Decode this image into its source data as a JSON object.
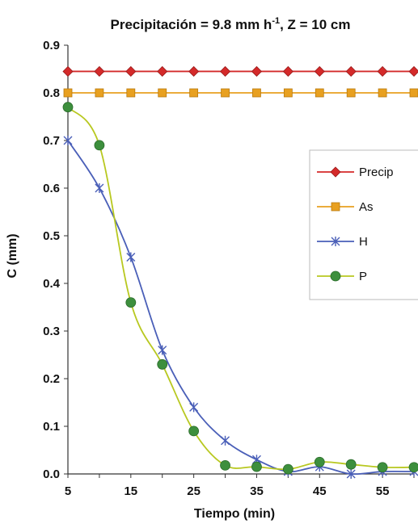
{
  "chart_data": {
    "type": "line",
    "title": "Precipitación = 9.8 mm h",
    "title_sup": "-1",
    "title_suffix": ", Z = 10 cm",
    "xlabel": "Tiempo (min)",
    "ylabel": "C (mm)",
    "xlim": [
      5,
      60
    ],
    "ylim": [
      0,
      0.9
    ],
    "x_ticks": [
      5,
      15,
      25,
      35,
      45,
      55
    ],
    "y_ticks": [
      "0.0",
      "0.1",
      "0.2",
      "0.3",
      "0.4",
      "0.5",
      "0.6",
      "0.7",
      "0.8",
      "0.9"
    ],
    "grid": false,
    "legend_position": "right",
    "series": [
      {
        "name": "Precip",
        "color": "#d42a2a",
        "marker": "diamond",
        "x": [
          5,
          10,
          15,
          20,
          25,
          30,
          35,
          40,
          45,
          50,
          55,
          60
        ],
        "values": [
          0.845,
          0.845,
          0.845,
          0.845,
          0.845,
          0.845,
          0.845,
          0.845,
          0.845,
          0.845,
          0.845,
          0.845
        ]
      },
      {
        "name": "As",
        "color": "#e8a020",
        "marker": "square",
        "x": [
          5,
          10,
          15,
          20,
          25,
          30,
          35,
          40,
          45,
          50,
          55,
          60
        ],
        "values": [
          0.8,
          0.8,
          0.8,
          0.8,
          0.8,
          0.8,
          0.8,
          0.8,
          0.8,
          0.8,
          0.8,
          0.8
        ]
      },
      {
        "name": "H",
        "color": "#4a5fb8",
        "marker": "star",
        "x": [
          5,
          10,
          15,
          20,
          25,
          30,
          35,
          40,
          45,
          50,
          55,
          60
        ],
        "values": [
          0.7,
          0.6,
          0.455,
          0.26,
          0.14,
          0.07,
          0.03,
          0.005,
          0.015,
          0.0,
          0.005,
          0.005
        ]
      },
      {
        "name": "P",
        "color": "#3d8f3d",
        "marker": "circle",
        "line_color": "#b8c820",
        "x": [
          5,
          10,
          15,
          20,
          25,
          30,
          35,
          40,
          45,
          50,
          55,
          60
        ],
        "values": [
          0.77,
          0.69,
          0.36,
          0.23,
          0.09,
          0.018,
          0.015,
          0.01,
          0.025,
          0.02,
          0.014,
          0.014
        ]
      }
    ]
  }
}
